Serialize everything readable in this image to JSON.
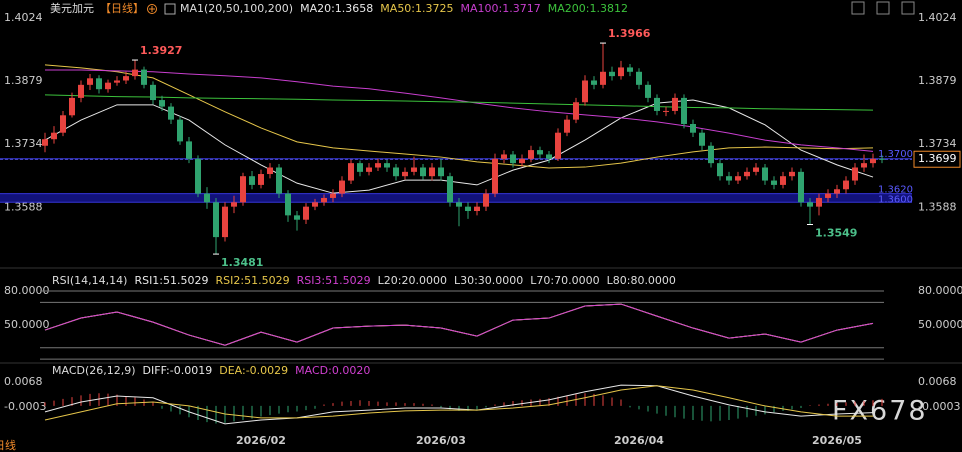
{
  "chart_data": {
    "type": "candlestick",
    "title": "美元加元",
    "period": "【日线】",
    "period_tab": "日线",
    "watermark": "FX678",
    "up_color": "#e8433f",
    "down_color": "#2fa36f",
    "categories": [
      null,
      null,
      null,
      null,
      null,
      null,
      null,
      null,
      null,
      null,
      null,
      null,
      null,
      null,
      null,
      null,
      null,
      null,
      null,
      null,
      null,
      null,
      null,
      null,
      "2026/02",
      null,
      null,
      null,
      null,
      null,
      null,
      null,
      null,
      null,
      null,
      null,
      null,
      null,
      null,
      null,
      null,
      null,
      null,
      null,
      "2026/03",
      null,
      null,
      null,
      null,
      null,
      null,
      null,
      null,
      null,
      null,
      null,
      null,
      null,
      null,
      null,
      null,
      null,
      null,
      null,
      null,
      null,
      "2026/04",
      null,
      null,
      null,
      null,
      null,
      null,
      null,
      null,
      null,
      null,
      null,
      null,
      null,
      null,
      null,
      null,
      null,
      null,
      null,
      null,
      null,
      "2026/05",
      null,
      null,
      null,
      null,
      null
    ],
    "open": [
      1.373,
      1.3745,
      1.376,
      1.38,
      1.384,
      1.387,
      1.3885,
      1.386,
      1.3875,
      1.388,
      1.389,
      1.3905,
      1.387,
      1.3835,
      1.382,
      1.379,
      1.374,
      1.37,
      1.362,
      1.36,
      1.352,
      1.359,
      1.36,
      1.366,
      1.364,
      1.3665,
      1.368,
      1.362,
      1.357,
      1.356,
      1.359,
      1.36,
      1.361,
      1.362,
      1.365,
      1.369,
      1.367,
      1.368,
      1.369,
      1.368,
      1.366,
      1.367,
      1.368,
      1.366,
      1.368,
      1.366,
      1.36,
      1.359,
      1.358,
      1.359,
      1.362,
      1.37,
      1.371,
      1.369,
      1.37,
      1.372,
      1.371,
      1.37,
      1.376,
      1.379,
      1.383,
      1.388,
      1.387,
      1.39,
      1.389,
      1.391,
      1.39,
      1.387,
      1.384,
      1.381,
      1.381,
      1.384,
      1.378,
      1.376,
      1.373,
      1.369,
      1.366,
      1.365,
      1.366,
      1.367,
      1.368,
      1.365,
      1.364,
      1.366,
      1.367,
      1.36,
      1.359,
      1.361,
      1.362,
      1.363,
      1.365,
      1.368,
      1.369,
      1.37
    ],
    "high": [
      1.376,
      1.3775,
      1.381,
      1.3852,
      1.388,
      1.3895,
      1.3892,
      1.3882,
      1.389,
      1.39,
      1.3927,
      1.3912,
      1.3878,
      1.3845,
      1.3828,
      1.3798,
      1.375,
      1.3708,
      1.3635,
      1.361,
      1.36,
      1.3615,
      1.3668,
      1.3672,
      1.3675,
      1.369,
      1.3688,
      1.3628,
      1.358,
      1.3598,
      1.3608,
      1.3618,
      1.363,
      1.366,
      1.3698,
      1.3696,
      1.369,
      1.37,
      1.3698,
      1.3688,
      1.368,
      1.3705,
      1.3688,
      1.369,
      1.37,
      1.3668,
      1.361,
      1.36,
      1.36,
      1.363,
      1.3712,
      1.372,
      1.3718,
      1.371,
      1.373,
      1.3728,
      1.3718,
      1.377,
      1.38,
      1.384,
      1.3892,
      1.389,
      1.3966,
      1.3912,
      1.3925,
      1.3918,
      1.3908,
      1.3878,
      1.3848,
      1.382,
      1.385,
      1.3848,
      1.379,
      1.3768,
      1.3738,
      1.3698,
      1.367,
      1.367,
      1.368,
      1.369,
      1.3688,
      1.366,
      1.367,
      1.368,
      1.3678,
      1.361,
      1.362,
      1.363,
      1.364,
      1.366,
      1.369,
      1.371,
      1.3712,
      1.3708
    ],
    "low": [
      1.3715,
      1.3735,
      1.3752,
      1.3795,
      1.383,
      1.3858,
      1.385,
      1.3852,
      1.3868,
      1.3872,
      1.3882,
      1.3862,
      1.3825,
      1.381,
      1.378,
      1.3732,
      1.369,
      1.3612,
      1.3585,
      1.3481,
      1.351,
      1.3575,
      1.3592,
      1.363,
      1.3632,
      1.3655,
      1.361,
      1.3555,
      1.3535,
      1.355,
      1.3582,
      1.3592,
      1.36,
      1.3612,
      1.3642,
      1.366,
      1.3662,
      1.3672,
      1.367,
      1.365,
      1.3652,
      1.3662,
      1.3652,
      1.365,
      1.365,
      1.359,
      1.3545,
      1.3562,
      1.357,
      1.358,
      1.3612,
      1.369,
      1.368,
      1.3682,
      1.3692,
      1.37,
      1.369,
      1.3695,
      1.3752,
      1.3782,
      1.3822,
      1.386,
      1.3862,
      1.388,
      1.3882,
      1.389,
      1.386,
      1.383,
      1.38,
      1.3798,
      1.3802,
      1.377,
      1.375,
      1.372,
      1.368,
      1.365,
      1.364,
      1.3642,
      1.3652,
      1.3662,
      1.364,
      1.363,
      1.3632,
      1.365,
      1.359,
      1.3549,
      1.357,
      1.36,
      1.361,
      1.362,
      1.364,
      1.367,
      1.368,
      1.369
    ],
    "close": [
      1.3745,
      1.376,
      1.38,
      1.384,
      1.387,
      1.3885,
      1.386,
      1.3875,
      1.388,
      1.389,
      1.3905,
      1.387,
      1.3835,
      1.382,
      1.379,
      1.374,
      1.37,
      1.362,
      1.36,
      1.352,
      1.359,
      1.36,
      1.366,
      1.364,
      1.3665,
      1.368,
      1.362,
      1.357,
      1.356,
      1.359,
      1.36,
      1.361,
      1.362,
      1.365,
      1.369,
      1.367,
      1.368,
      1.369,
      1.368,
      1.366,
      1.367,
      1.368,
      1.366,
      1.368,
      1.366,
      1.36,
      1.359,
      1.358,
      1.359,
      1.362,
      1.37,
      1.371,
      1.369,
      1.37,
      1.372,
      1.371,
      1.37,
      1.376,
      1.379,
      1.383,
      1.388,
      1.387,
      1.39,
      1.389,
      1.391,
      1.39,
      1.387,
      1.384,
      1.381,
      1.381,
      1.384,
      1.378,
      1.376,
      1.373,
      1.369,
      1.366,
      1.365,
      1.366,
      1.367,
      1.368,
      1.365,
      1.364,
      1.366,
      1.367,
      1.36,
      1.359,
      1.361,
      1.362,
      1.363,
      1.365,
      1.368,
      1.369,
      1.37,
      1.3699
    ],
    "ylim": [
      1.3449,
      1.4065
    ],
    "yticks": [
      1.3588,
      1.3734,
      1.3879,
      1.4024
    ],
    "last_price": 1.3699,
    "price_lines": [
      {
        "value": 1.37,
        "label": "1.3700"
      },
      {
        "value": 1.362,
        "label": "1.3620"
      },
      {
        "value": 1.36,
        "label": "1.3600"
      }
    ],
    "ma": {
      "label": "MA1(20,50,100,200)",
      "x": [
        0,
        4,
        8,
        12,
        16,
        20,
        24,
        28,
        32,
        36,
        40,
        44,
        48,
        52,
        56,
        60,
        64,
        68,
        72,
        76,
        80,
        84,
        88,
        92
      ],
      "series": [
        {
          "name": "MA20:1.3658",
          "color": "#e8e8e8",
          "values": [
            1.3743,
            1.3789,
            1.3824,
            1.3824,
            1.3789,
            1.3732,
            1.3686,
            1.3644,
            1.3621,
            1.3628,
            1.3651,
            1.3651,
            1.364,
            1.3674,
            1.3697,
            1.3743,
            1.3794,
            1.3828,
            1.3835,
            1.3817,
            1.3778,
            1.372,
            1.3686,
            1.3658
          ]
        },
        {
          "name": "MA50:1.3725",
          "color": "#e6c64a",
          "values": [
            1.3916,
            1.3909,
            1.39,
            1.3886,
            1.3847,
            1.3808,
            1.3771,
            1.3739,
            1.3725,
            1.3718,
            1.3711,
            1.3704,
            1.3693,
            1.3686,
            1.3679,
            1.3681,
            1.369,
            1.3704,
            1.3716,
            1.3725,
            1.3727,
            1.3725,
            1.3723,
            1.3725
          ]
        },
        {
          "name": "MA100:1.3717",
          "color": "#c83fcf",
          "values": [
            1.3904,
            1.3904,
            1.3902,
            1.39,
            1.3895,
            1.3891,
            1.3886,
            1.3877,
            1.3867,
            1.3861,
            1.3851,
            1.384,
            1.3828,
            1.3817,
            1.3808,
            1.3801,
            1.3794,
            1.3785,
            1.3773,
            1.3759,
            1.3743,
            1.3732,
            1.3725,
            1.3717
          ]
        },
        {
          "name": "MA200:1.3812",
          "color": "#3cc23c",
          "values": [
            1.3847,
            1.3845,
            1.3843,
            1.3842,
            1.384,
            1.3839,
            1.3838,
            1.3837,
            1.3835,
            1.3834,
            1.3833,
            1.3831,
            1.383,
            1.3828,
            1.3826,
            1.3824,
            1.3822,
            1.382,
            1.3818,
            1.3817,
            1.3815,
            1.3814,
            1.3813,
            1.3812
          ]
        }
      ]
    },
    "rsi": {
      "label": "RSI(14,14,14)",
      "ylim": [
        17.5,
        98.5
      ],
      "yticks": [
        {
          "value": 50,
          "label": "50.0000"
        },
        {
          "value": 80,
          "label": "80.0000"
        }
      ],
      "x": [
        0,
        4,
        8,
        12,
        16,
        20,
        24,
        28,
        32,
        36,
        40,
        44,
        48,
        52,
        56,
        60,
        64,
        68,
        72,
        76,
        80,
        84,
        88,
        92
      ],
      "series": [
        {
          "name": "RSI1:51.5029",
          "color": "#e8e8e8",
          "values": [
            45.6,
            56.2,
            61.5,
            52.6,
            41.2,
            32.3,
            43.8,
            35.0,
            47.4,
            49.1,
            50.0,
            47.4,
            40.3,
            54.4,
            56.2,
            66.8,
            68.5,
            57.9,
            47.4,
            38.5,
            42.1,
            35.0,
            45.6,
            51.5
          ]
        },
        {
          "name": "RSI2:51.5029",
          "color": "#e6c64a",
          "values": [
            45.6,
            56.2,
            61.5,
            52.6,
            41.2,
            32.3,
            43.8,
            35.0,
            47.4,
            49.1,
            50.0,
            47.4,
            40.3,
            54.4,
            56.2,
            66.8,
            68.5,
            57.9,
            47.4,
            38.5,
            42.1,
            35.0,
            45.6,
            51.5
          ]
        },
        {
          "name": "RSI3:51.5029",
          "color": "#d040d0",
          "values": [
            45.6,
            56.2,
            61.5,
            52.6,
            41.2,
            32.3,
            43.8,
            35.0,
            47.4,
            49.1,
            50.0,
            47.4,
            40.3,
            54.4,
            56.2,
            66.8,
            68.5,
            57.9,
            47.4,
            38.5,
            42.1,
            35.0,
            45.6,
            51.5
          ]
        }
      ],
      "levels": [
        {
          "name": "L20:20.0000",
          "value": 20
        },
        {
          "name": "L30:30.0000",
          "value": 30
        },
        {
          "name": "L70:70.0000",
          "value": 70
        },
        {
          "name": "L80:80.0000",
          "value": 80
        }
      ]
    },
    "macd": {
      "label": "MACD(26,12,9)",
      "ylim": [
        -0.0074,
        0.0116
      ],
      "yticks": [
        -0.0003,
        0.0068
      ],
      "x": [
        0,
        4,
        8,
        12,
        16,
        20,
        24,
        28,
        32,
        36,
        40,
        44,
        48,
        52,
        56,
        60,
        64,
        68,
        72,
        76,
        80,
        84,
        88,
        92
      ],
      "series": [
        {
          "name": "DIFF:-0.0019",
          "color": "#e8e8e8",
          "values": [
            -0.0017,
            0.0011,
            0.0028,
            0.0023,
            -0.0017,
            -0.0051,
            -0.004,
            -0.0034,
            -0.0017,
            -0.0012,
            -0.0006,
            -0.0006,
            -0.0012,
            0.0003,
            0.0017,
            0.004,
            0.0059,
            0.0057,
            0.0028,
            0.0003,
            -0.0017,
            -0.0029,
            -0.0023,
            -0.0019
          ]
        },
        {
          "name": "DEA:-0.0029",
          "color": "#e6c64a",
          "values": [
            -0.004,
            -0.0017,
            0.0006,
            0.0011,
            0.0,
            -0.0023,
            -0.0034,
            -0.0034,
            -0.0029,
            -0.002,
            -0.0014,
            -0.0012,
            -0.0012,
            -0.0006,
            0.0003,
            0.0023,
            0.0045,
            0.0057,
            0.0045,
            0.0023,
            0.0,
            -0.0017,
            -0.0029,
            -0.0029
          ]
        }
      ],
      "histogram": {
        "name": "MACD:0.0020",
        "color": "#d040d0",
        "values": [
          0.001,
          0.0015,
          0.002,
          0.0025,
          0.003,
          0.0034,
          0.0036,
          0.0035,
          0.0032,
          0.0028,
          0.0024,
          0.0018,
          0.001,
          -0.0008,
          -0.0016,
          -0.0024,
          -0.0032,
          -0.004,
          -0.0046,
          -0.005,
          -0.0048,
          -0.0044,
          -0.004,
          -0.0036,
          -0.003,
          -0.0026,
          -0.0022,
          -0.0018,
          -0.0016,
          -0.0012,
          -0.0008,
          0.0004,
          0.0008,
          0.0012,
          0.0014,
          0.0016,
          0.0014,
          0.0012,
          0.001,
          0.001,
          0.0008,
          0.0008,
          0.0006,
          0.0004,
          -0.0004,
          -0.001,
          -0.0014,
          -0.0014,
          -0.001,
          -0.0004,
          0.0004,
          0.001,
          0.0014,
          0.0016,
          0.0018,
          0.002,
          0.0022,
          0.0026,
          0.003,
          0.0034,
          0.0036,
          0.0034,
          0.003,
          0.0024,
          0.0018,
          -0.0004,
          -0.001,
          -0.0016,
          -0.0022,
          -0.0028,
          -0.0032,
          -0.0036,
          -0.004,
          -0.0042,
          -0.0044,
          -0.0042,
          -0.004,
          -0.0036,
          -0.0032,
          -0.0028,
          -0.0024,
          -0.0018,
          -0.0014,
          -0.001,
          -0.0006,
          0.0002,
          0.0004,
          0.0006,
          0.0008,
          0.001,
          0.0012,
          0.0014,
          0.0016,
          0.002
        ]
      }
    }
  }
}
